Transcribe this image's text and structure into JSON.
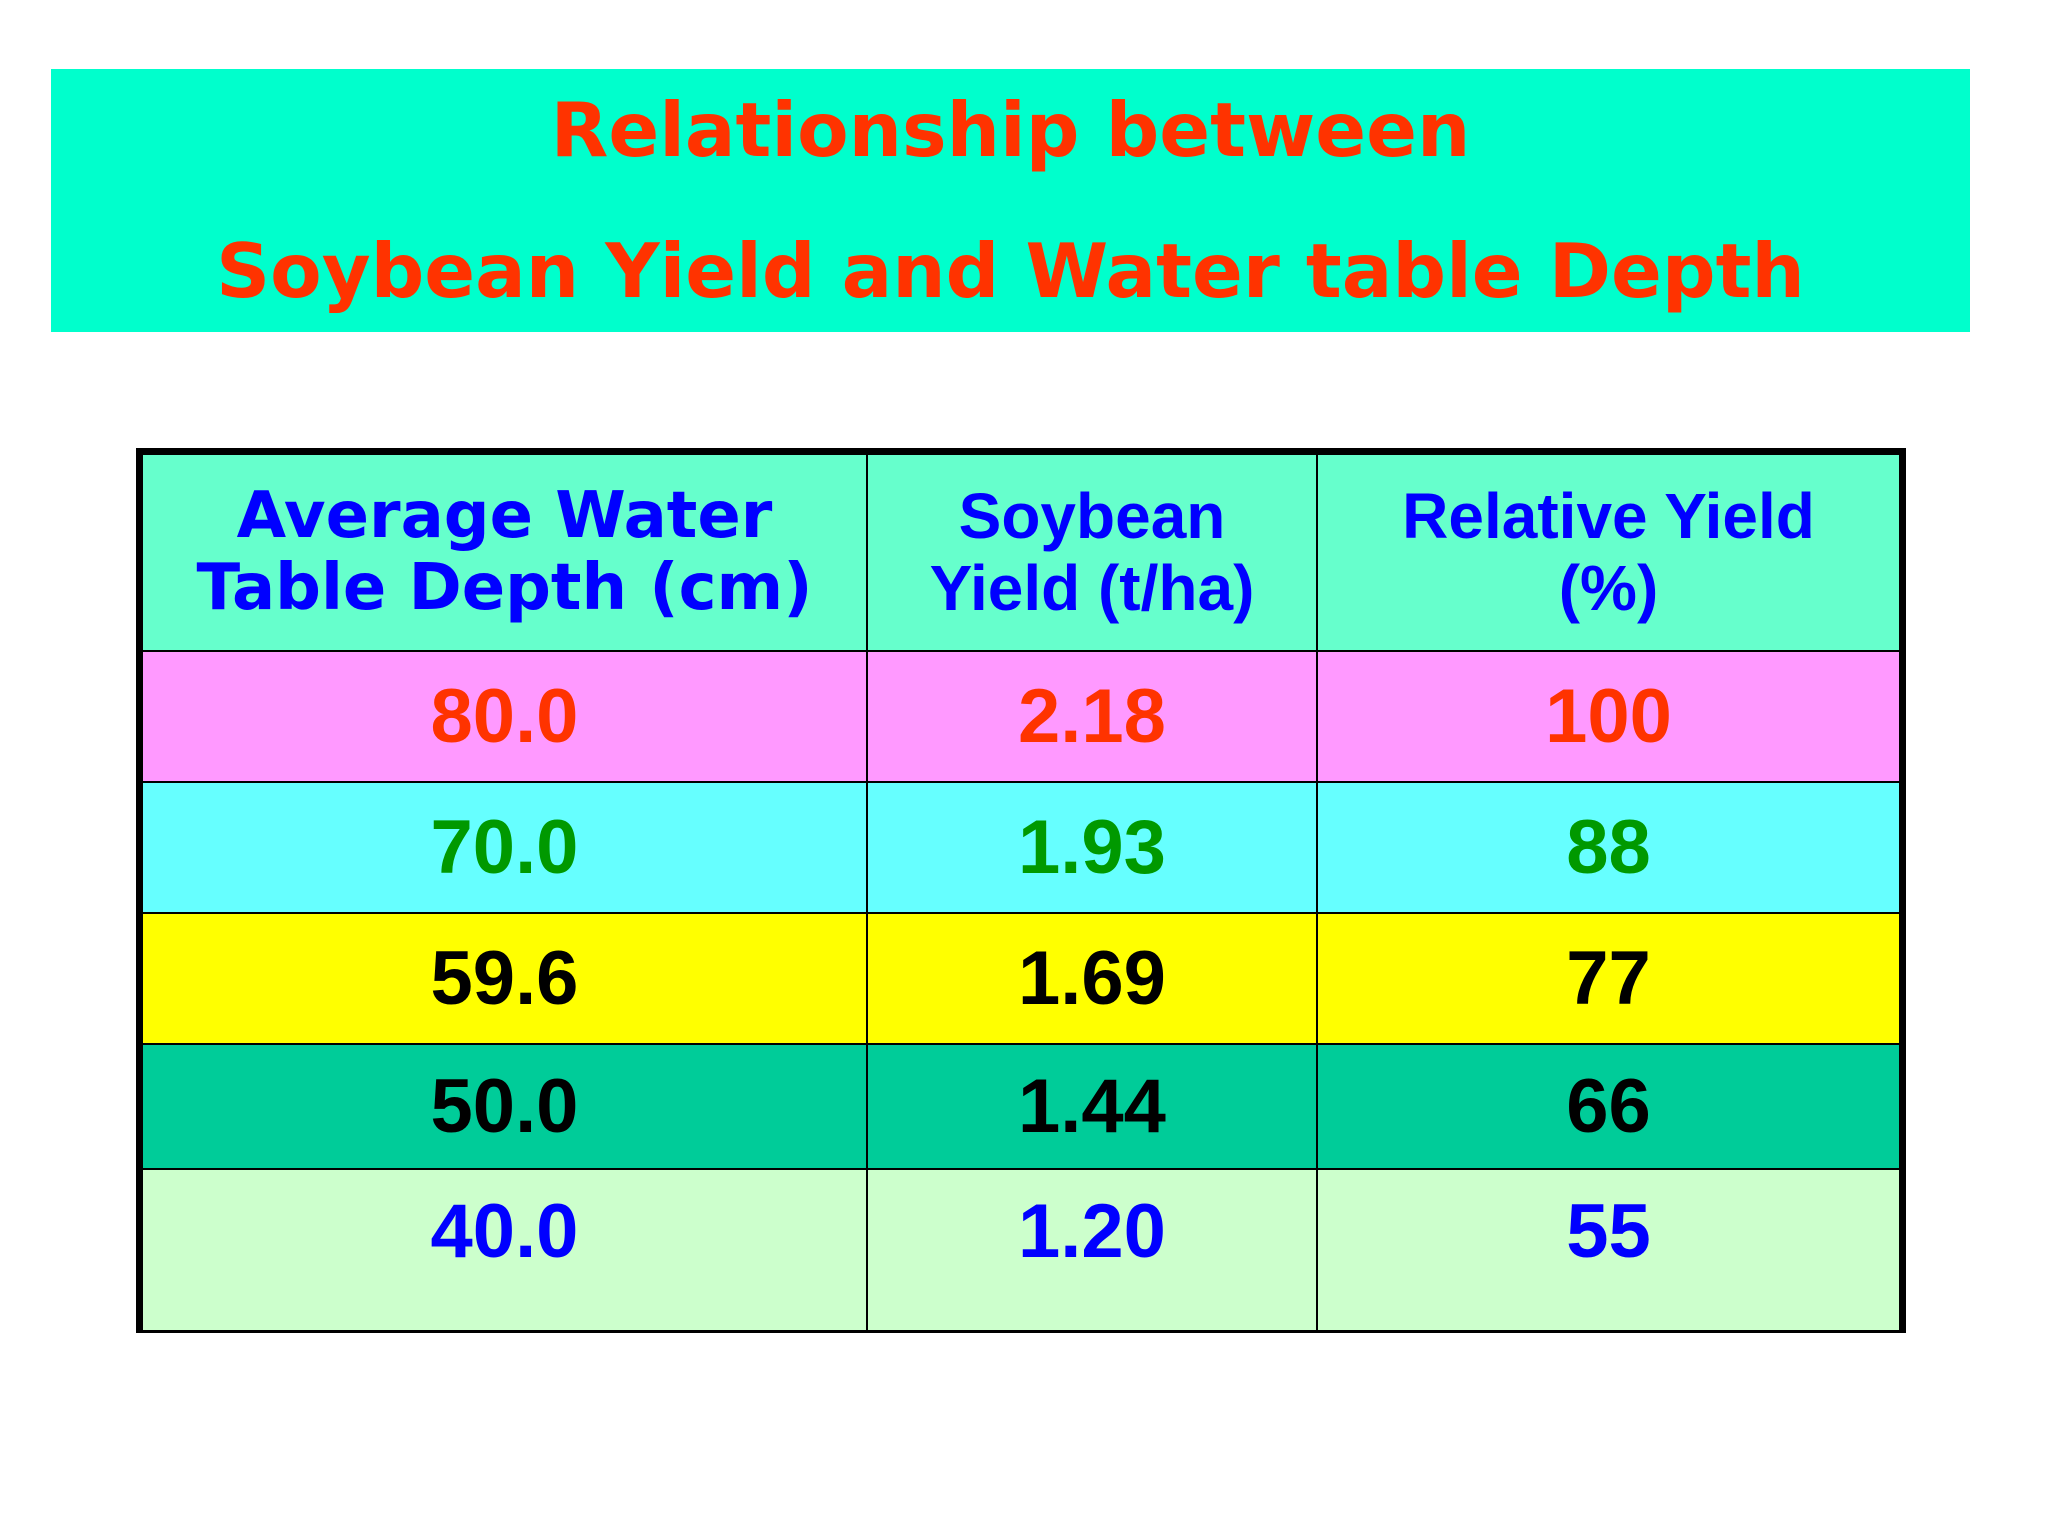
{
  "title": {
    "line1": "Relationship between",
    "line2": "Soybean Yield and Water table Depth"
  },
  "table": {
    "headers": [
      {
        "line1": "Average Water",
        "line2": "Table Depth (cm)"
      },
      {
        "line1": "Soybean",
        "line2": "Yield (t/ha)"
      },
      {
        "line1": "Relative Yield",
        "line2": "(%)"
      }
    ],
    "rows": [
      {
        "depth": "80.0",
        "yield": "2.18",
        "relative": "100"
      },
      {
        "depth": "70.0",
        "yield": "1.93",
        "relative": "88"
      },
      {
        "depth": "59.6",
        "yield": "1.69",
        "relative": "77"
      },
      {
        "depth": "50.0",
        "yield": "1.44",
        "relative": "66"
      },
      {
        "depth": "40.0",
        "yield": "1.20",
        "relative": "55"
      }
    ]
  },
  "colors": {
    "banner_bg": "#00ffcc",
    "title_text": "#ff3300",
    "header_bg": "#66ffcc",
    "header_text": "#0000ff",
    "row_backgrounds": [
      "#ff99ff",
      "#66ffff",
      "#ffff00",
      "#00cc99",
      "#ccffcc"
    ],
    "row_text": [
      "#ff3300",
      "#009900",
      "#000000",
      "#000000",
      "#0000ff"
    ]
  }
}
